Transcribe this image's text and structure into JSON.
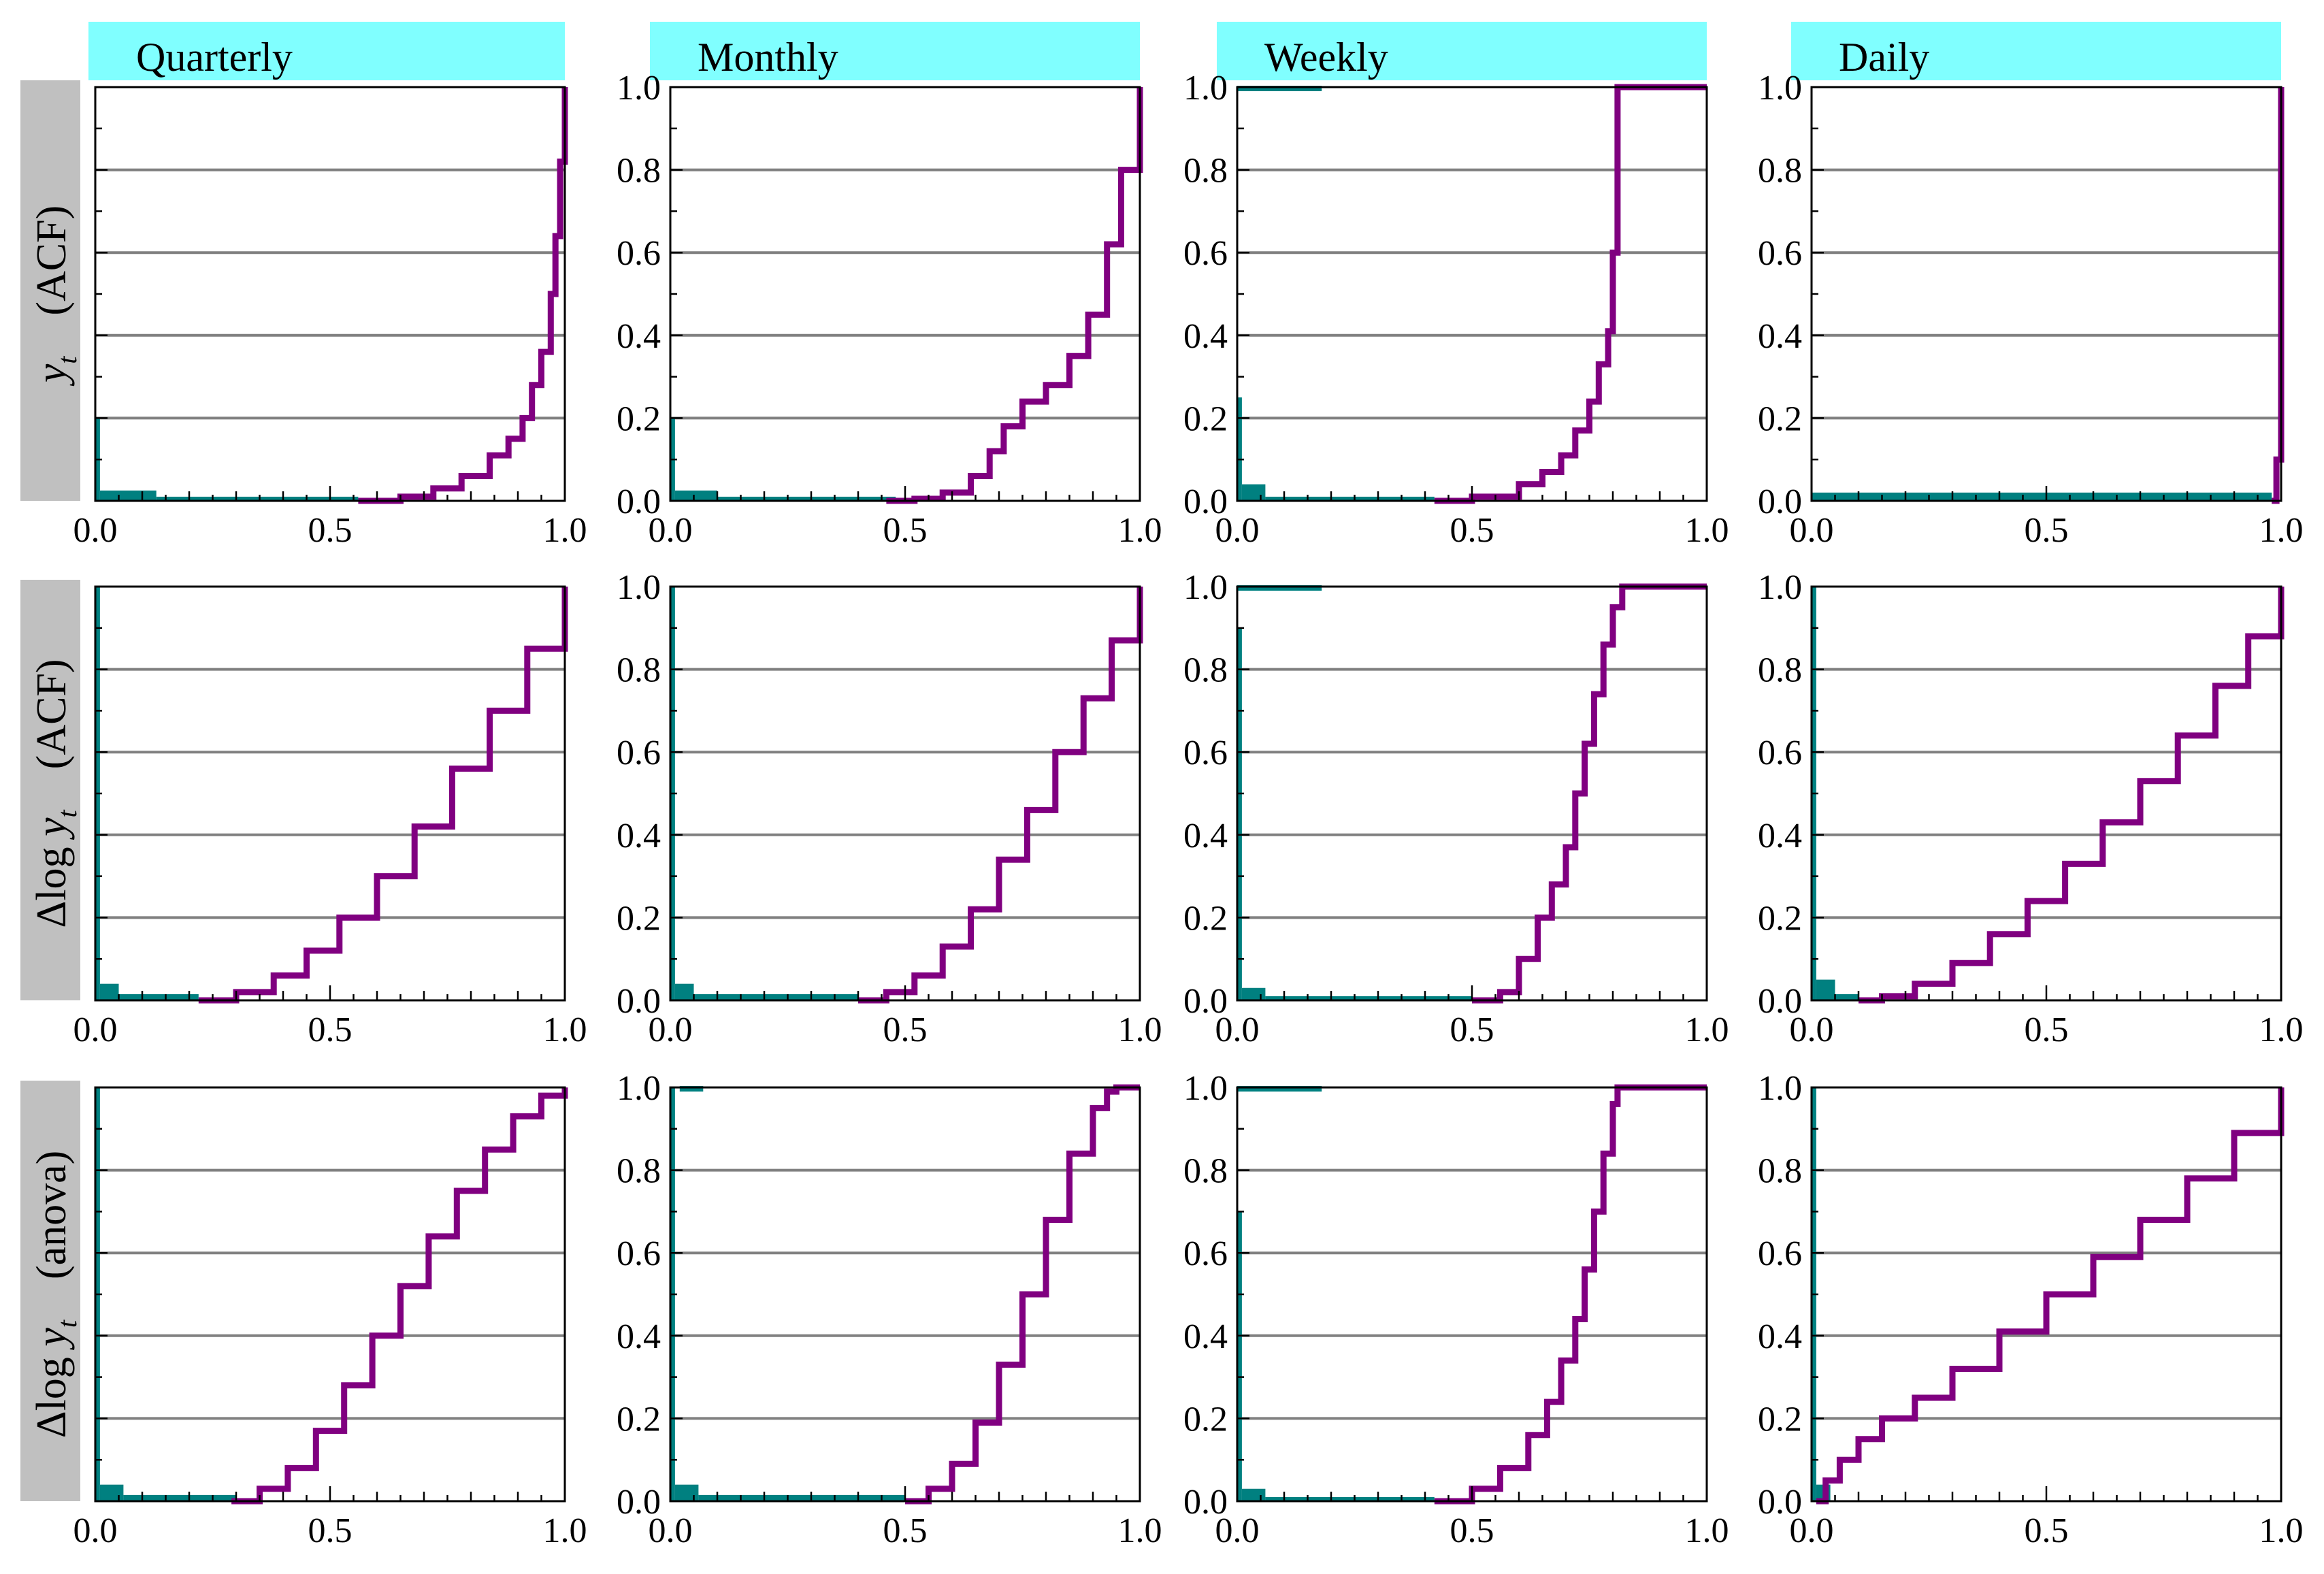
{
  "figure": {
    "column_titles": [
      "Quarterly",
      "Monthly",
      "Weekly",
      "Daily"
    ],
    "row_labels": [
      {
        "transform": "",
        "variable": "y",
        "subscript": "t",
        "method": "(ACF)"
      },
      {
        "transform": "Δlog ",
        "variable": "y",
        "subscript": "t",
        "method": "(ACF)"
      },
      {
        "transform": "Δlog ",
        "variable": "y",
        "subscript": "t",
        "method": "(anova)"
      }
    ],
    "x_tick_labels": [
      "0.0",
      "0.5",
      "1.0"
    ],
    "y_tick_labels": [
      "0.0",
      "0.2",
      "0.4",
      "0.6",
      "0.8",
      "1.0"
    ],
    "colors": {
      "title_strip": "#80ffff",
      "row_strip": "#c0c0c0",
      "cdf_curve": "#800080",
      "histogram": "#008080",
      "gridline": "#808080"
    }
  },
  "chart_data": [
    {
      "row": 0,
      "col": 0,
      "type": "line",
      "title": "Quarterly",
      "ylabel": "y_t (ACF)",
      "xlim": [
        0,
        1
      ],
      "ylim": [
        0,
        1
      ],
      "grid": true,
      "series": [
        {
          "name": "cdf",
          "x": [
            0.56,
            0.65,
            0.72,
            0.78,
            0.84,
            0.88,
            0.91,
            0.93,
            0.95,
            0.97,
            0.98,
            0.99,
            1.0
          ],
          "y": [
            0,
            0.01,
            0.03,
            0.06,
            0.11,
            0.15,
            0.2,
            0.28,
            0.36,
            0.5,
            0.64,
            0.82,
            1.0
          ]
        }
      ],
      "histogram": [
        {
          "x0": 0.0,
          "x1": 0.01,
          "h": 0.2
        },
        {
          "x0": 0.01,
          "x1": 0.13,
          "h": 0.025
        },
        {
          "x0": 0.13,
          "x1": 0.56,
          "h": 0.01
        }
      ]
    },
    {
      "row": 0,
      "col": 1,
      "type": "line",
      "title": "Monthly",
      "ylabel": "",
      "xlim": [
        0,
        1
      ],
      "ylim": [
        0,
        1
      ],
      "grid": true,
      "series": [
        {
          "name": "cdf",
          "x": [
            0.46,
            0.52,
            0.58,
            0.64,
            0.68,
            0.71,
            0.75,
            0.8,
            0.85,
            0.89,
            0.93,
            0.96,
            1.0
          ],
          "y": [
            0,
            0.005,
            0.02,
            0.06,
            0.12,
            0.18,
            0.24,
            0.28,
            0.35,
            0.45,
            0.62,
            0.8,
            1.0
          ]
        }
      ],
      "histogram": [
        {
          "x0": 0.0,
          "x1": 0.01,
          "h": 0.2
        },
        {
          "x0": 0.01,
          "x1": 0.1,
          "h": 0.025
        },
        {
          "x0": 0.1,
          "x1": 0.48,
          "h": 0.01
        }
      ]
    },
    {
      "row": 0,
      "col": 2,
      "type": "line",
      "title": "Weekly",
      "ylabel": "",
      "xlim": [
        0,
        1
      ],
      "ylim": [
        0,
        1
      ],
      "grid": true,
      "series": [
        {
          "name": "cdf",
          "x": [
            0.42,
            0.5,
            0.6,
            0.65,
            0.69,
            0.72,
            0.75,
            0.77,
            0.79,
            0.8,
            0.81,
            1.0
          ],
          "y": [
            0,
            0.01,
            0.04,
            0.07,
            0.11,
            0.17,
            0.24,
            0.33,
            0.41,
            0.6,
            1.0,
            1.0
          ]
        }
      ],
      "histogram": [
        {
          "x0": 0.0,
          "x1": 0.01,
          "h": 0.25
        },
        {
          "x0": 0.01,
          "x1": 0.06,
          "h": 0.04
        },
        {
          "x0": 0.06,
          "x1": 0.42,
          "h": 0.01
        },
        {
          "x0": 0.0,
          "x1": 0.18,
          "h": 1.0,
          "band": true
        }
      ]
    },
    {
      "row": 0,
      "col": 3,
      "type": "line",
      "title": "Daily",
      "ylabel": "",
      "xlim": [
        0,
        1
      ],
      "ylim": [
        0,
        1
      ],
      "grid": true,
      "series": [
        {
          "name": "cdf",
          "x": [
            0.98,
            0.99,
            1.0
          ],
          "y": [
            0,
            0.1,
            1.0
          ]
        }
      ],
      "histogram": [
        {
          "x0": 0.0,
          "x1": 0.98,
          "h": 0.02
        }
      ]
    },
    {
      "row": 1,
      "col": 0,
      "type": "line",
      "title": "",
      "ylabel": "Δlog y_t (ACF)",
      "xlim": [
        0,
        1
      ],
      "ylim": [
        0,
        1
      ],
      "grid": true,
      "series": [
        {
          "name": "cdf",
          "x": [
            0.22,
            0.3,
            0.38,
            0.45,
            0.52,
            0.6,
            0.68,
            0.76,
            0.84,
            0.92,
            1.0
          ],
          "y": [
            0,
            0.02,
            0.06,
            0.12,
            0.2,
            0.3,
            0.42,
            0.56,
            0.7,
            0.85,
            1.0
          ]
        }
      ],
      "histogram": [
        {
          "x0": 0.0,
          "x1": 0.01,
          "h": 1.0
        },
        {
          "x0": 0.01,
          "x1": 0.05,
          "h": 0.04
        },
        {
          "x0": 0.05,
          "x1": 0.22,
          "h": 0.015
        }
      ]
    },
    {
      "row": 1,
      "col": 1,
      "type": "line",
      "title": "",
      "ylabel": "",
      "xlim": [
        0,
        1
      ],
      "ylim": [
        0,
        1
      ],
      "grid": true,
      "series": [
        {
          "name": "cdf",
          "x": [
            0.4,
            0.46,
            0.52,
            0.58,
            0.64,
            0.7,
            0.76,
            0.82,
            0.88,
            0.94,
            1.0
          ],
          "y": [
            0,
            0.02,
            0.06,
            0.13,
            0.22,
            0.34,
            0.46,
            0.6,
            0.73,
            0.87,
            1.0
          ]
        }
      ],
      "histogram": [
        {
          "x0": 0.0,
          "x1": 0.01,
          "h": 1.0
        },
        {
          "x0": 0.01,
          "x1": 0.05,
          "h": 0.04
        },
        {
          "x0": 0.05,
          "x1": 0.4,
          "h": 0.015
        }
      ]
    },
    {
      "row": 1,
      "col": 2,
      "type": "line",
      "title": "",
      "ylabel": "",
      "xlim": [
        0,
        1
      ],
      "ylim": [
        0,
        1
      ],
      "grid": true,
      "series": [
        {
          "name": "cdf",
          "x": [
            0.5,
            0.56,
            0.6,
            0.64,
            0.67,
            0.7,
            0.72,
            0.74,
            0.76,
            0.78,
            0.8,
            0.82,
            1.0
          ],
          "y": [
            0,
            0.02,
            0.1,
            0.2,
            0.28,
            0.37,
            0.5,
            0.62,
            0.74,
            0.86,
            0.95,
            1.0,
            1.0
          ]
        }
      ],
      "histogram": [
        {
          "x0": 0.0,
          "x1": 0.01,
          "h": 0.9
        },
        {
          "x0": 0.01,
          "x1": 0.06,
          "h": 0.03
        },
        {
          "x0": 0.06,
          "x1": 0.5,
          "h": 0.01
        },
        {
          "x0": 0.0,
          "x1": 0.18,
          "h": 1.0,
          "band": true
        }
      ]
    },
    {
      "row": 1,
      "col": 3,
      "type": "line",
      "title": "",
      "ylabel": "",
      "xlim": [
        0,
        1
      ],
      "ylim": [
        0,
        1
      ],
      "grid": true,
      "series": [
        {
          "name": "cdf",
          "x": [
            0.1,
            0.15,
            0.22,
            0.3,
            0.38,
            0.46,
            0.54,
            0.62,
            0.7,
            0.78,
            0.86,
            0.93,
            1.0
          ],
          "y": [
            0,
            0.01,
            0.04,
            0.09,
            0.16,
            0.24,
            0.33,
            0.43,
            0.53,
            0.64,
            0.76,
            0.88,
            1.0
          ]
        }
      ],
      "histogram": [
        {
          "x0": 0.0,
          "x1": 0.01,
          "h": 1.0
        },
        {
          "x0": 0.01,
          "x1": 0.05,
          "h": 0.05
        },
        {
          "x0": 0.05,
          "x1": 0.1,
          "h": 0.015
        }
      ]
    },
    {
      "row": 2,
      "col": 0,
      "type": "line",
      "title": "",
      "ylabel": "Δlog y_t (anova)",
      "xlim": [
        0,
        1
      ],
      "ylim": [
        0,
        1
      ],
      "grid": true,
      "series": [
        {
          "name": "cdf",
          "x": [
            0.29,
            0.35,
            0.41,
            0.47,
            0.53,
            0.59,
            0.65,
            0.71,
            0.77,
            0.83,
            0.89,
            0.95,
            1.0
          ],
          "y": [
            0,
            0.03,
            0.08,
            0.17,
            0.28,
            0.4,
            0.52,
            0.64,
            0.75,
            0.85,
            0.93,
            0.98,
            1.0
          ]
        }
      ],
      "histogram": [
        {
          "x0": 0.0,
          "x1": 0.01,
          "h": 1.0
        },
        {
          "x0": 0.01,
          "x1": 0.06,
          "h": 0.04
        },
        {
          "x0": 0.06,
          "x1": 0.3,
          "h": 0.015
        }
      ]
    },
    {
      "row": 2,
      "col": 1,
      "type": "line",
      "title": "",
      "ylabel": "",
      "xlim": [
        0,
        1
      ],
      "ylim": [
        0,
        1
      ],
      "grid": true,
      "series": [
        {
          "name": "cdf",
          "x": [
            0.5,
            0.55,
            0.6,
            0.65,
            0.7,
            0.75,
            0.8,
            0.85,
            0.9,
            0.93,
            0.95,
            1.0
          ],
          "y": [
            0,
            0.03,
            0.09,
            0.19,
            0.33,
            0.5,
            0.68,
            0.84,
            0.95,
            0.99,
            1.0,
            1.0
          ]
        }
      ],
      "histogram": [
        {
          "x0": 0.0,
          "x1": 0.01,
          "h": 1.0
        },
        {
          "x0": 0.01,
          "x1": 0.06,
          "h": 0.04
        },
        {
          "x0": 0.06,
          "x1": 0.5,
          "h": 0.015
        },
        {
          "x0": 0.02,
          "x1": 0.07,
          "h": 1.0,
          "band": true
        }
      ]
    },
    {
      "row": 2,
      "col": 2,
      "type": "line",
      "title": "",
      "ylabel": "",
      "xlim": [
        0,
        1
      ],
      "ylim": [
        0,
        1
      ],
      "grid": true,
      "series": [
        {
          "name": "cdf",
          "x": [
            0.42,
            0.5,
            0.56,
            0.62,
            0.66,
            0.69,
            0.72,
            0.74,
            0.76,
            0.78,
            0.8,
            0.81,
            1.0
          ],
          "y": [
            0,
            0.03,
            0.08,
            0.16,
            0.24,
            0.34,
            0.44,
            0.56,
            0.7,
            0.84,
            0.96,
            1.0,
            1.0
          ]
        }
      ],
      "histogram": [
        {
          "x0": 0.0,
          "x1": 0.01,
          "h": 0.7
        },
        {
          "x0": 0.01,
          "x1": 0.06,
          "h": 0.03
        },
        {
          "x0": 0.06,
          "x1": 0.42,
          "h": 0.01
        },
        {
          "x0": 0.0,
          "x1": 0.18,
          "h": 1.0,
          "band": true
        }
      ]
    },
    {
      "row": 2,
      "col": 3,
      "type": "line",
      "title": "",
      "ylabel": "",
      "xlim": [
        0,
        1
      ],
      "ylim": [
        0,
        1
      ],
      "grid": true,
      "series": [
        {
          "name": "cdf",
          "x": [
            0.01,
            0.03,
            0.06,
            0.1,
            0.15,
            0.22,
            0.3,
            0.4,
            0.5,
            0.6,
            0.7,
            0.8,
            0.9,
            1.0
          ],
          "y": [
            0,
            0.05,
            0.1,
            0.15,
            0.2,
            0.25,
            0.32,
            0.41,
            0.5,
            0.59,
            0.68,
            0.78,
            0.89,
            1.0
          ]
        }
      ],
      "histogram": [
        {
          "x0": 0.0,
          "x1": 0.01,
          "h": 1.0
        },
        {
          "x0": 0.01,
          "x1": 0.04,
          "h": 0.04
        }
      ]
    }
  ]
}
